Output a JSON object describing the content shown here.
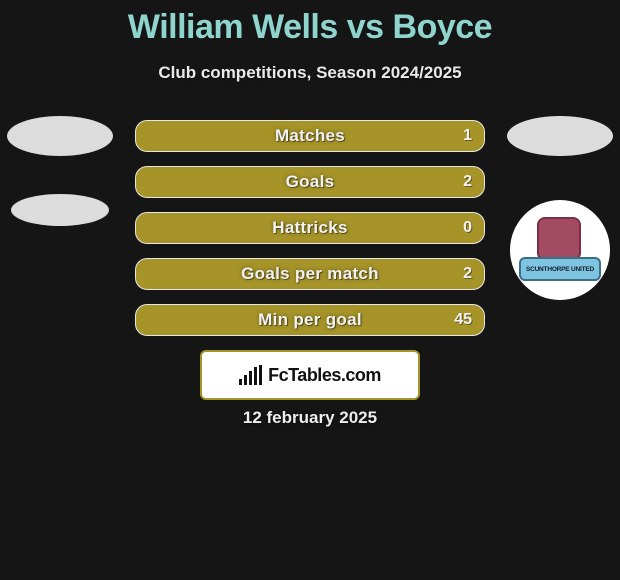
{
  "title": {
    "player1": "William Wells",
    "vs": "vs",
    "player2": "Boyce",
    "color": "#8fd4cd"
  },
  "subtitle": "Club competitions, Season 2024/2025",
  "stats": {
    "bar_bg": "#a69429",
    "bar_border": "#e6e6e6",
    "text_color": "#f2f2f2",
    "rows": [
      {
        "label": "Matches",
        "right": "1"
      },
      {
        "label": "Goals",
        "right": "2"
      },
      {
        "label": "Hattricks",
        "right": "0"
      },
      {
        "label": "Goals per match",
        "right": "2"
      },
      {
        "label": "Min per goal",
        "right": "45"
      }
    ]
  },
  "left_icons": {
    "ellipse_color": "#dcdcdc"
  },
  "right_icons": {
    "ellipse_color": "#dcdcdc",
    "badge_ribbon_text": "SCUNTHORPE UNITED"
  },
  "brand": {
    "text": "FcTables.com",
    "box_border": "#a69429"
  },
  "date": "12 february 2025",
  "background": "#151515"
}
